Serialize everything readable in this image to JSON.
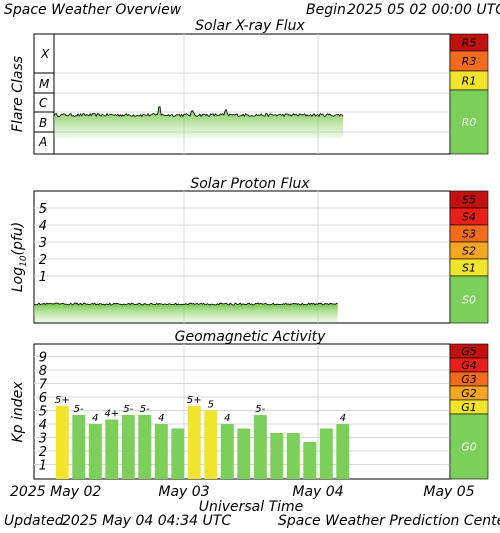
{
  "header": {
    "title": "Space Weather Overview",
    "begin_label": "Begin",
    "begin_value": "2025 05 02 00:00 UTC"
  },
  "footer": {
    "updated_label": "Updated",
    "updated_value": "2025 May 04 04:34 UTC",
    "center": "Space Weather Prediction Center"
  },
  "time_axis": {
    "label": "Universal Time",
    "ticks": [
      "2025 May 02",
      "May 03",
      "May 04",
      "May 05"
    ]
  },
  "colors": {
    "quiet_green": "#7ccf5a",
    "yellow": "#f0e52c",
    "orange": "#f5a623",
    "orange_red": "#f26a1c",
    "red": "#e8201c",
    "dark_red": "#c0120e",
    "trace_line": "#000000"
  },
  "chart_data": [
    {
      "type": "area",
      "title": "Solar X-ray Flux",
      "ylabel": "Flare Class",
      "y_classes": [
        "X",
        "M",
        "C",
        "B",
        "A"
      ],
      "x_range": [
        "2025-05-02",
        "2025-05-05"
      ],
      "data_end": "2025-05-04 04:34",
      "level_class": "B",
      "scale": [
        {
          "label": "R5",
          "color": "#c0120e"
        },
        {
          "label": "R3",
          "color": "#f26a1c"
        },
        {
          "label": "R1",
          "color": "#f0e52c"
        },
        {
          "label": "R0",
          "color": "#7ccf5a"
        }
      ]
    },
    {
      "type": "area",
      "title": "Solar Proton Flux",
      "ylabel": "Log10(pfu)",
      "ylabel_parts": {
        "base": "Log",
        "sub": "10",
        "rest": "(pfu)"
      },
      "y_ticks": [
        "5",
        "4",
        "3",
        "2",
        "1"
      ],
      "x_range": [
        "2025-05-02",
        "2025-05-05"
      ],
      "data_end": "2025-05-04 04:34",
      "scale": [
        {
          "label": "S5",
          "color": "#c0120e"
        },
        {
          "label": "S4",
          "color": "#e8201c"
        },
        {
          "label": "S3",
          "color": "#f26a1c"
        },
        {
          "label": "S2",
          "color": "#f5a623"
        },
        {
          "label": "S1",
          "color": "#f0e52c"
        },
        {
          "label": "S0",
          "color": "#7ccf5a"
        }
      ]
    },
    {
      "type": "bar",
      "title": "Geomagnetic Activity",
      "ylabel": "Kp index",
      "y_ticks": [
        "9",
        "8",
        "7",
        "6",
        "5",
        "4",
        "3",
        "2",
        "1"
      ],
      "ylim": [
        0,
        10
      ],
      "values": [
        5.33,
        4.67,
        4.0,
        4.33,
        4.67,
        4.67,
        4.0,
        3.67,
        5.33,
        5.0,
        4.0,
        3.67,
        4.67,
        3.33,
        3.33,
        2.67,
        3.67,
        4.0
      ],
      "labels": [
        "5+",
        "5-",
        "4",
        "4+",
        "5-",
        "5-",
        "4",
        "",
        "5+",
        "5",
        "4",
        "",
        "5-",
        "",
        "",
        "",
        "",
        "4"
      ],
      "bar_colors": [
        "yellow",
        "green",
        "green",
        "green",
        "green",
        "green",
        "green",
        "green",
        "yellow",
        "yellow",
        "green",
        "green",
        "green",
        "green",
        "green",
        "green",
        "green",
        "green"
      ],
      "scale": [
        {
          "label": "G5",
          "color": "#c0120e"
        },
        {
          "label": "G4",
          "color": "#e8201c"
        },
        {
          "label": "G3",
          "color": "#f26a1c"
        },
        {
          "label": "G2",
          "color": "#f5a623"
        },
        {
          "label": "G1",
          "color": "#f0e52c"
        },
        {
          "label": "G0",
          "color": "#7ccf5a"
        }
      ]
    }
  ]
}
